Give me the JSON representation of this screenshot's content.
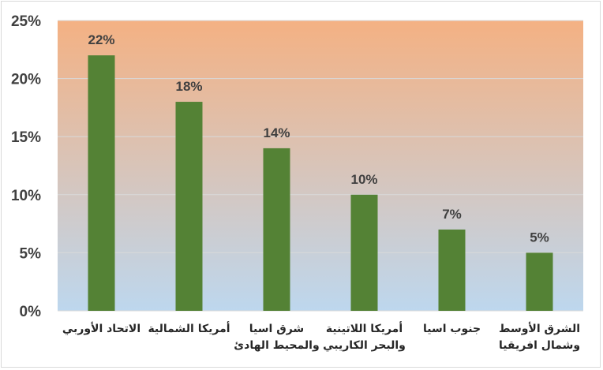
{
  "chart_data": {
    "type": "bar",
    "title": "",
    "xlabel": "",
    "ylabel": "",
    "ylim": [
      0,
      25
    ],
    "yticks": [
      "0%",
      "5%",
      "10%",
      "15%",
      "20%",
      "25%"
    ],
    "grid": true,
    "legend": "none",
    "categories": [
      [
        "الاتحاد الأوربي"
      ],
      [
        "أمريكا الشمالية"
      ],
      [
        "شرق اسيا",
        "والمحيط الهادئ"
      ],
      [
        "أمريكا اللاتينية",
        "والبحر الكاريبي"
      ],
      [
        "جنوب اسيا"
      ],
      [
        "الشرق الأوسط",
        "وشمال افريقيا"
      ]
    ],
    "values": [
      22,
      18,
      14,
      10,
      7,
      5
    ],
    "data_labels": [
      "22%",
      "18%",
      "14%",
      "10%",
      "7%",
      "5%"
    ],
    "colors": {
      "bar": "#548235",
      "background_top": "#f4b183",
      "background_bottom": "#bdd7ee",
      "gridline": "#d9d9d9",
      "text": "#404040"
    }
  }
}
